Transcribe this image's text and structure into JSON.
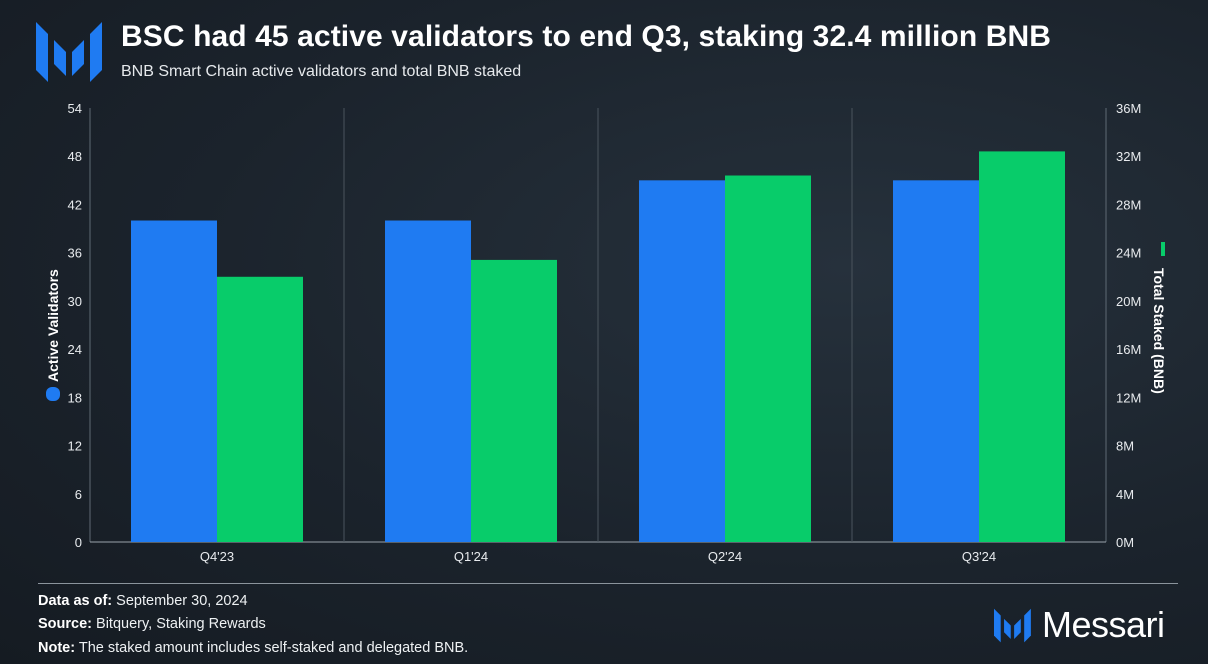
{
  "header": {
    "title": "BSC had 45 active validators to end Q3, staking 32.4 million BNB",
    "subtitle": "BNB Smart Chain active validators and total BNB staked"
  },
  "chart_data": {
    "type": "bar",
    "categories": [
      "Q4'23",
      "Q1'24",
      "Q2'24",
      "Q3'24"
    ],
    "series": [
      {
        "name": "Active Validators",
        "axis": "left",
        "color": "#1f7bf2",
        "values": [
          40,
          40,
          45,
          45
        ]
      },
      {
        "name": "Total Staked (BNB)",
        "axis": "right",
        "color": "#08cc6a",
        "values": [
          22000000,
          23400000,
          30400000,
          32400000
        ]
      }
    ],
    "yaxis_left": {
      "label": "Active Validators",
      "ylim": [
        0,
        54
      ],
      "ticks": [
        "0",
        "6",
        "12",
        "18",
        "24",
        "30",
        "36",
        "42",
        "48",
        "54"
      ]
    },
    "yaxis_right": {
      "label": "Total Staked (BNB)",
      "ylim": [
        0,
        36000000
      ],
      "ticks": [
        "0M",
        "4M",
        "8M",
        "12M",
        "16M",
        "20M",
        "24M",
        "28M",
        "32M",
        "36M"
      ]
    },
    "grid": "vertical separators",
    "legend": "axis labels"
  },
  "footer": {
    "date_label": "Data as of:",
    "date_value": "September 30, 2024",
    "source_label": "Source:",
    "source_value": "Bitquery, Staking Rewards",
    "note_label": "Note:",
    "note_value": "The staked amount includes self-staked and delegated BNB."
  },
  "brand": {
    "name": "Messari",
    "logo_icon": "messari-logo-icon"
  }
}
